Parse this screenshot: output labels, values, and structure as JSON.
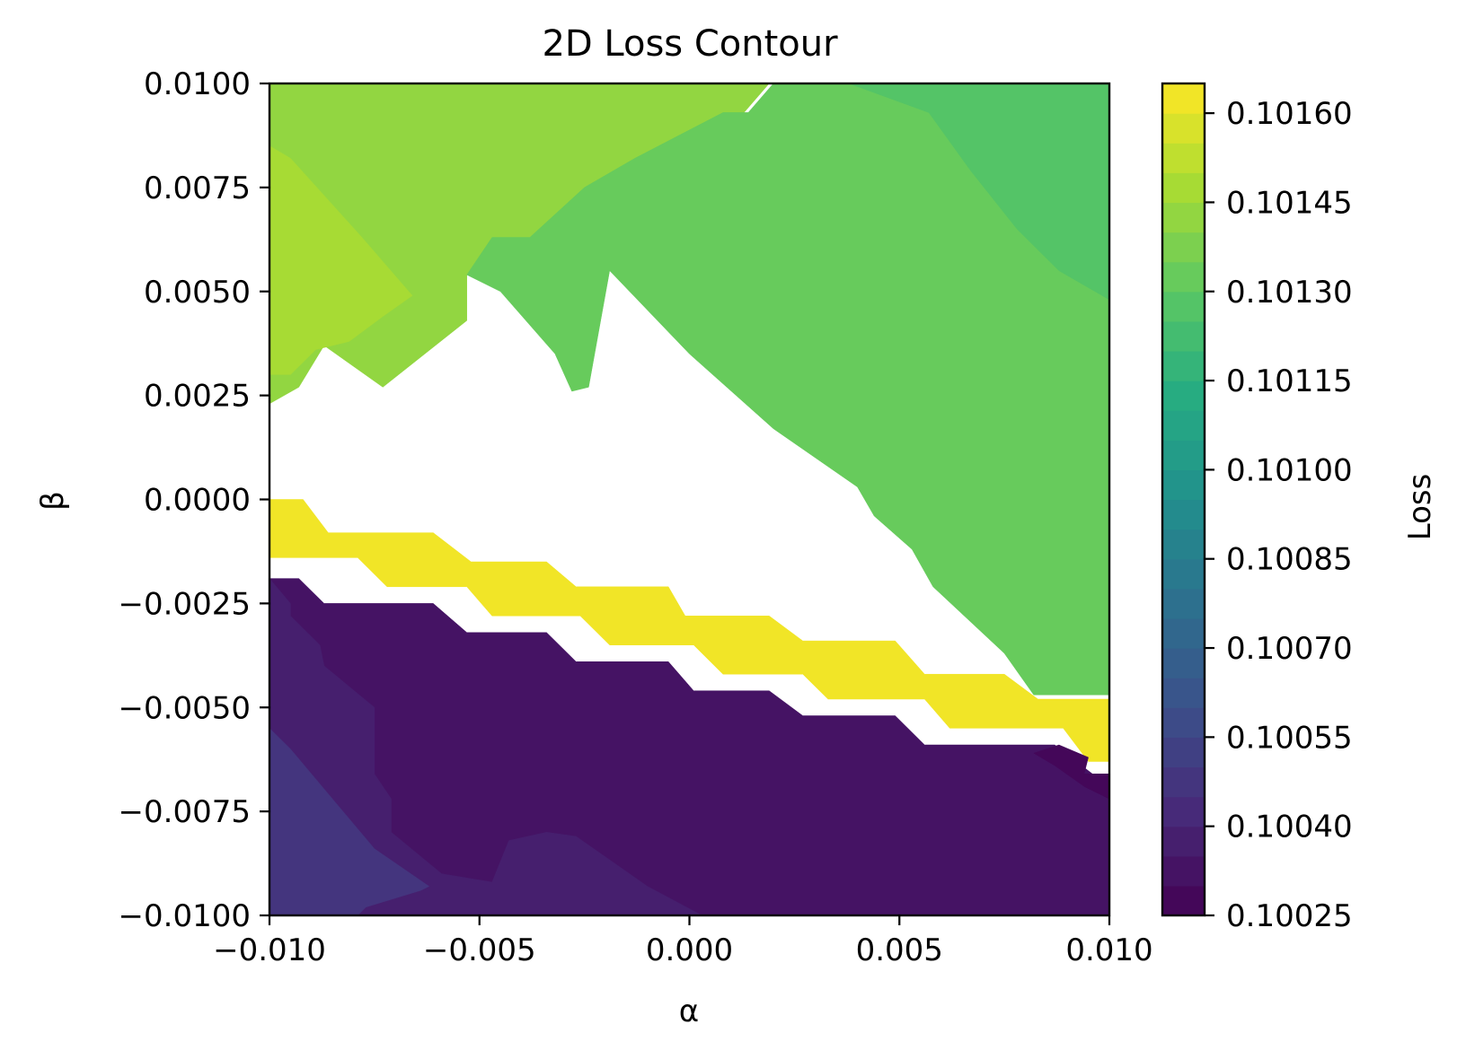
{
  "chart_data": {
    "type": "contour",
    "title": "2D Loss Contour",
    "xlabel": "α",
    "ylabel": "β",
    "xlim": [
      -0.01,
      0.01
    ],
    "ylim": [
      -0.01,
      0.01
    ],
    "xticks": [
      {
        "value": -0.01,
        "label": "−0.010"
      },
      {
        "value": -0.005,
        "label": "−0.005"
      },
      {
        "value": 0.0,
        "label": "0.000"
      },
      {
        "value": 0.005,
        "label": "0.005"
      },
      {
        "value": 0.01,
        "label": "0.010"
      }
    ],
    "yticks": [
      {
        "value": 0.01,
        "label": "0.0100"
      },
      {
        "value": 0.0075,
        "label": "0.0075"
      },
      {
        "value": 0.005,
        "label": "0.0050"
      },
      {
        "value": 0.0025,
        "label": "0.0025"
      },
      {
        "value": 0.0,
        "label": "0.0000"
      },
      {
        "value": -0.0025,
        "label": "−0.0025"
      },
      {
        "value": -0.005,
        "label": "−0.0050"
      },
      {
        "value": -0.0075,
        "label": "−0.0075"
      },
      {
        "value": -0.01,
        "label": "−0.0100"
      }
    ],
    "colormap": "viridis",
    "grid": false,
    "colorbar": {
      "label": "Loss",
      "range": [
        0.10025,
        0.10165
      ],
      "levels": 28,
      "ticks": [
        {
          "value": 0.1016,
          "label": "0.10160"
        },
        {
          "value": 0.10145,
          "label": "0.10145"
        },
        {
          "value": 0.1013,
          "label": "0.10130"
        },
        {
          "value": 0.10115,
          "label": "0.10115"
        },
        {
          "value": 0.101,
          "label": "0.10100"
        },
        {
          "value": 0.10085,
          "label": "0.10085"
        },
        {
          "value": 0.1007,
          "label": "0.10070"
        },
        {
          "value": 0.10055,
          "label": "0.10055"
        },
        {
          "value": 0.1004,
          "label": "0.10040"
        },
        {
          "value": 0.10025,
          "label": "0.10025"
        }
      ]
    },
    "regions": [
      {
        "name": "green-plateau",
        "level": 0.10142,
        "polygon": [
          [
            -0.01,
            0.01
          ],
          [
            0.0019,
            0.01
          ],
          [
            0.0013,
            0.0093
          ],
          [
            -0.0025,
            0.0075
          ],
          [
            -0.0035,
            0.0063
          ],
          [
            -0.0053,
            0.0054
          ],
          [
            -0.0053,
            0.0043
          ],
          [
            -0.0073,
            0.0027
          ],
          [
            -0.0087,
            0.0037
          ],
          [
            -0.0093,
            0.0027
          ],
          [
            -0.01,
            0.0023
          ],
          [
            -0.01,
            -0.01
          ]
        ]
      },
      {
        "name": "lime-top-left",
        "level": 0.10149,
        "polygon": [
          [
            -0.01,
            0.0085
          ],
          [
            -0.0095,
            0.0082
          ],
          [
            -0.0078,
            0.0063
          ],
          [
            -0.0066,
            0.0049
          ],
          [
            -0.0073,
            0.0044
          ],
          [
            -0.0081,
            0.0038
          ],
          [
            -0.0089,
            0.0036
          ],
          [
            -0.0095,
            0.003
          ],
          [
            -0.01,
            0.003
          ]
        ]
      },
      {
        "name": "mid-green-right",
        "level": 0.10134,
        "polygon": [
          [
            0.002,
            0.01
          ],
          [
            0.01,
            0.01
          ],
          [
            0.01,
            -0.0047
          ],
          [
            0.0082,
            -0.0047
          ],
          [
            0.0075,
            -0.0037
          ],
          [
            0.0058,
            -0.0021
          ],
          [
            0.0053,
            -0.0012
          ],
          [
            0.0044,
            -0.0004
          ],
          [
            0.004,
            0.0003
          ],
          [
            0.002,
            0.0017
          ],
          [
            0.0,
            0.0035
          ],
          [
            -0.0019,
            0.0055
          ],
          [
            -0.0024,
            0.0027
          ],
          [
            -0.0028,
            0.0026
          ],
          [
            -0.0032,
            0.0035
          ],
          [
            -0.0045,
            0.005
          ],
          [
            -0.0053,
            0.0054
          ],
          [
            -0.0047,
            0.0063
          ],
          [
            -0.0038,
            0.0063
          ],
          [
            -0.0025,
            0.0075
          ],
          [
            -0.0013,
            0.0082
          ],
          [
            0.0008,
            0.0093
          ],
          [
            0.0014,
            0.0093
          ]
        ]
      },
      {
        "name": "teal-green-top-right",
        "level": 0.10128,
        "polygon": [
          [
            0.0038,
            0.01
          ],
          [
            0.01,
            0.01
          ],
          [
            0.01,
            0.0048
          ],
          [
            0.0088,
            0.0055
          ],
          [
            0.0078,
            0.0065
          ],
          [
            0.0067,
            0.0079
          ],
          [
            0.0057,
            0.0093
          ]
        ]
      },
      {
        "name": "yellow-ridge",
        "level": 0.10162,
        "polygon": [
          [
            -0.01,
            0.0
          ],
          [
            -0.0092,
            0.0
          ],
          [
            -0.0086,
            -0.0008
          ],
          [
            -0.0061,
            -0.0008
          ],
          [
            -0.0052,
            -0.0015
          ],
          [
            -0.0034,
            -0.0015
          ],
          [
            -0.0027,
            -0.0021
          ],
          [
            -0.0005,
            -0.0021
          ],
          [
            -0.0001,
            -0.0028
          ],
          [
            0.0019,
            -0.0028
          ],
          [
            0.0027,
            -0.0034
          ],
          [
            0.0049,
            -0.0034
          ],
          [
            0.0056,
            -0.0042
          ],
          [
            0.0075,
            -0.0042
          ],
          [
            0.0083,
            -0.0048
          ],
          [
            0.01,
            -0.0048
          ],
          [
            0.01,
            -0.0063
          ],
          [
            0.0095,
            -0.0063
          ],
          [
            0.0089,
            -0.0055
          ],
          [
            0.0062,
            -0.0055
          ],
          [
            0.0056,
            -0.0048
          ],
          [
            0.0033,
            -0.0048
          ],
          [
            0.0027,
            -0.0042
          ],
          [
            0.0008,
            -0.0042
          ],
          [
            0.0001,
            -0.0035
          ],
          [
            -0.0019,
            -0.0035
          ],
          [
            -0.0026,
            -0.0028
          ],
          [
            -0.0047,
            -0.0028
          ],
          [
            -0.0053,
            -0.0021
          ],
          [
            -0.0072,
            -0.0021
          ],
          [
            -0.0079,
            -0.0014
          ],
          [
            -0.01,
            -0.0014
          ]
        ]
      },
      {
        "name": "dark-valley",
        "level": 0.10032,
        "polygon": [
          [
            -0.01,
            -0.0019
          ],
          [
            -0.0093,
            -0.0019
          ],
          [
            -0.0087,
            -0.0025
          ],
          [
            -0.0061,
            -0.0025
          ],
          [
            -0.0053,
            -0.0032
          ],
          [
            -0.0034,
            -0.0032
          ],
          [
            -0.0027,
            -0.0039
          ],
          [
            -0.0005,
            -0.0039
          ],
          [
            0.0001,
            -0.0046
          ],
          [
            0.0019,
            -0.0046
          ],
          [
            0.0027,
            -0.0052
          ],
          [
            0.0049,
            -0.0052
          ],
          [
            0.0056,
            -0.0059
          ],
          [
            0.0087,
            -0.0059
          ],
          [
            0.0096,
            -0.0066
          ],
          [
            0.01,
            -0.0066
          ],
          [
            0.01,
            -0.01
          ],
          [
            -0.01,
            -0.01
          ]
        ]
      },
      {
        "name": "lower-left-band",
        "level": 0.1004,
        "polygon": [
          [
            -0.01,
            -0.0019
          ],
          [
            -0.0095,
            -0.0025
          ],
          [
            -0.0095,
            -0.0028
          ],
          [
            -0.0088,
            -0.0035
          ],
          [
            -0.0087,
            -0.004
          ],
          [
            -0.0075,
            -0.005
          ],
          [
            -0.0075,
            -0.0066
          ],
          [
            -0.0071,
            -0.0072
          ],
          [
            -0.0071,
            -0.008
          ],
          [
            -0.0059,
            -0.009
          ],
          [
            -0.0047,
            -0.0092
          ],
          [
            -0.0043,
            -0.0082
          ],
          [
            -0.0034,
            -0.008
          ],
          [
            -0.0027,
            -0.0081
          ],
          [
            -0.001,
            -0.0093
          ],
          [
            0.0003,
            -0.01
          ],
          [
            -0.01,
            -0.01
          ]
        ]
      },
      {
        "name": "indigo-bottom-left",
        "level": 0.10046,
        "polygon": [
          [
            -0.01,
            -0.0055
          ],
          [
            -0.0095,
            -0.006
          ],
          [
            -0.0085,
            -0.0072
          ],
          [
            -0.0075,
            -0.0084
          ],
          [
            -0.0062,
            -0.0093
          ],
          [
            -0.0064,
            -0.0094
          ],
          [
            -0.0077,
            -0.0098
          ],
          [
            -0.0079,
            -0.01
          ],
          [
            -0.01,
            -0.01
          ]
        ]
      },
      {
        "name": "deepest-corner",
        "level": 0.10026,
        "polygon": [
          [
            0.0088,
            -0.0059
          ],
          [
            0.0095,
            -0.0062
          ],
          [
            0.0094,
            -0.0066
          ],
          [
            0.01,
            -0.0066
          ],
          [
            0.01,
            -0.0072
          ],
          [
            0.0094,
            -0.0069
          ],
          [
            0.0087,
            -0.0064
          ],
          [
            0.0082,
            -0.0061
          ]
        ]
      }
    ]
  }
}
